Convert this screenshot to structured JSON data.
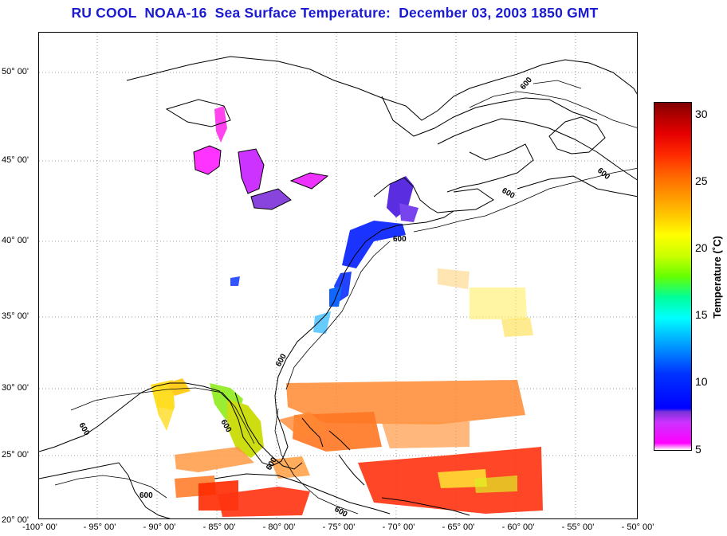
{
  "title": "RU COOL  NOAA-16  Sea Surface Temperature:  December 03, 2003 1850 GMT",
  "lat_labels": [
    "50° 00'",
    "45° 00'",
    "40° 00'",
    "35° 00'",
    "30° 00'",
    "25° 00'",
    "20° 00'"
  ],
  "lon_labels": [
    "-100° 00'",
    "- 95° 00'",
    "- 90° 00'",
    "- 85° 00'",
    "- 80° 00'",
    "- 75° 00'",
    "- 70° 00'",
    "- 65° 00'",
    "- 60° 00'",
    "- 55° 00'",
    "- 50° 00'"
  ],
  "isobath_label": "600",
  "colorbar": {
    "label": "Temperature (˚C)",
    "ticks": [
      "30",
      "25",
      "20",
      "15",
      "10",
      "5"
    ],
    "min": 5,
    "max": 31
  },
  "colors": {
    "title": "#1a1ad0",
    "coast": "#000000",
    "grid": "#808080"
  }
}
